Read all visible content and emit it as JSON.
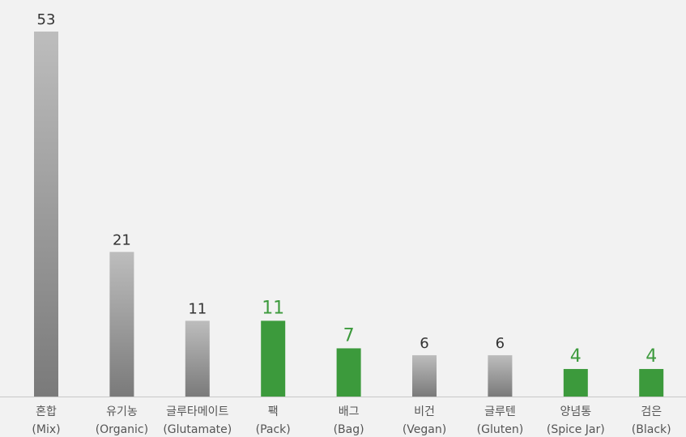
{
  "chart_data": {
    "type": "bar",
    "categories": [
      [
        "혼합",
        "(Mix)"
      ],
      [
        "유기농",
        "(Organic)"
      ],
      [
        "글루타메이트",
        "(Glutamate)"
      ],
      [
        "팩",
        "(Pack)"
      ],
      [
        "배그",
        "(Bag)"
      ],
      [
        "비건",
        "(Vegan)"
      ],
      [
        "글루텐",
        "(Gluten)"
      ],
      [
        "양념통",
        "(Spice Jar)"
      ],
      [
        "검은",
        "(Black)"
      ]
    ],
    "values": [
      53,
      21,
      11,
      11,
      7,
      6,
      6,
      4,
      4
    ],
    "highlight": [
      false,
      false,
      false,
      true,
      true,
      false,
      false,
      true,
      true
    ],
    "ylim": [
      0,
      53
    ],
    "title": "",
    "xlabel": "",
    "ylabel": "",
    "grid": false,
    "colors": {
      "gray_top": "#bdbdbd",
      "gray_bottom": "#7a7a7a",
      "green": "#3c9a3c",
      "green_label": "#3c9a3c",
      "gray_label": "#333333",
      "axis": "#c8c8c8",
      "category_text": "#555555"
    }
  }
}
